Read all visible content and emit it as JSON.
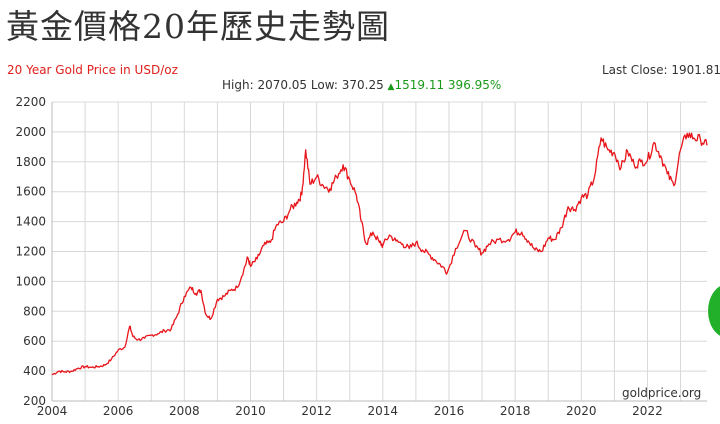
{
  "page": {
    "title": "黃金價格20年歷史走勢圖",
    "subtitle": "20 Year Gold Price in USD/oz",
    "last_close_label": "Last Close: 1901.81",
    "high_text": "High: 2070.05",
    "low_text": "Low: 370.25",
    "change_text": "1519.11",
    "change_pct_text": "396.95%",
    "watermark": "goldprice.org"
  },
  "colors": {
    "line": "#e8151b",
    "grid": "#d8d8d8",
    "up": "#1a9a1a",
    "bubble": "#22b02a"
  },
  "chart_data": {
    "type": "line",
    "title": "20 Year Gold Price in USD/oz",
    "xlabel": "",
    "ylabel": "",
    "xlim": [
      2004,
      2023.8
    ],
    "ylim": [
      200,
      2200
    ],
    "yticks": [
      200,
      400,
      600,
      800,
      1000,
      1200,
      1400,
      1600,
      1800,
      2000,
      2200
    ],
    "xticks": [
      2004,
      2006,
      2008,
      2010,
      2012,
      2014,
      2016,
      2018,
      2020,
      2022
    ],
    "grid": true,
    "series": [
      {
        "name": "",
        "x": [
          2004.0,
          2004.2,
          2004.4,
          2004.6,
          2004.8,
          2005.0,
          2005.2,
          2005.4,
          2005.6,
          2005.8,
          2006.0,
          2006.2,
          2006.35,
          2006.45,
          2006.6,
          2006.8,
          2007.0,
          2007.2,
          2007.4,
          2007.6,
          2007.8,
          2008.0,
          2008.2,
          2008.35,
          2008.5,
          2008.65,
          2008.8,
          2009.0,
          2009.2,
          2009.4,
          2009.6,
          2009.8,
          2009.92,
          2010.0,
          2010.2,
          2010.4,
          2010.6,
          2010.8,
          2011.0,
          2011.2,
          2011.4,
          2011.55,
          2011.67,
          2011.8,
          2012.0,
          2012.2,
          2012.4,
          2012.6,
          2012.8,
          2013.0,
          2013.2,
          2013.35,
          2013.5,
          2013.7,
          2013.9,
          2014.0,
          2014.2,
          2014.4,
          2014.6,
          2014.8,
          2015.0,
          2015.2,
          2015.4,
          2015.6,
          2015.8,
          2015.95,
          2016.2,
          2016.5,
          2016.8,
          2017.0,
          2017.2,
          2017.5,
          2017.8,
          2018.0,
          2018.2,
          2018.4,
          2018.6,
          2018.8,
          2019.0,
          2019.2,
          2019.4,
          2019.6,
          2019.8,
          2020.0,
          2020.2,
          2020.4,
          2020.6,
          2020.8,
          2021.0,
          2021.2,
          2021.4,
          2021.6,
          2021.8,
          2022.0,
          2022.2,
          2022.4,
          2022.6,
          2022.8,
          2023.0,
          2023.2,
          2023.4,
          2023.6,
          2023.8
        ],
        "values": [
          375,
          400,
          395,
          400,
          420,
          430,
          425,
          430,
          440,
          480,
          540,
          560,
          700,
          630,
          610,
          620,
          640,
          650,
          670,
          680,
          780,
          900,
          960,
          920,
          940,
          780,
          750,
          880,
          900,
          940,
          960,
          1080,
          1160,
          1100,
          1150,
          1240,
          1260,
          1380,
          1400,
          1480,
          1530,
          1580,
          1880,
          1650,
          1700,
          1640,
          1620,
          1700,
          1780,
          1680,
          1580,
          1400,
          1250,
          1330,
          1260,
          1240,
          1310,
          1270,
          1250,
          1220,
          1260,
          1210,
          1180,
          1140,
          1100,
          1060,
          1220,
          1340,
          1230,
          1190,
          1250,
          1280,
          1280,
          1330,
          1330,
          1270,
          1210,
          1200,
          1290,
          1280,
          1360,
          1500,
          1480,
          1560,
          1580,
          1700,
          1960,
          1880,
          1860,
          1760,
          1870,
          1780,
          1800,
          1810,
          1930,
          1840,
          1720,
          1640,
          1880,
          1990,
          1960,
          1950,
          1910
        ]
      }
    ]
  }
}
